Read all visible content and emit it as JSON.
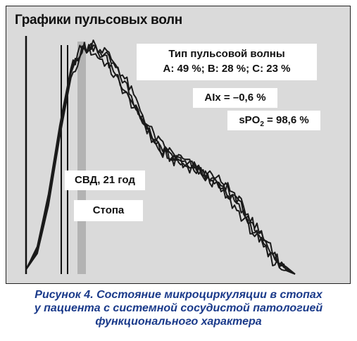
{
  "chart_data": {
    "type": "line",
    "title": "Графики пульсовых волн",
    "xlabel": "",
    "ylabel": "",
    "grid": false,
    "legend": "none",
    "series": [
      {
        "shape": [
          0.02,
          0.1,
          0.32,
          0.62,
          0.88,
          0.99,
          1.0,
          0.96,
          0.9,
          0.82,
          0.72,
          0.62,
          0.55,
          0.52,
          0.5,
          0.48,
          0.44,
          0.41,
          0.37,
          0.31,
          0.24,
          0.17,
          0.1,
          0.04,
          0.0
        ]
      },
      {
        "shape": [
          0.02,
          0.12,
          0.35,
          0.65,
          0.9,
          1.0,
          0.97,
          0.93,
          0.86,
          0.78,
          0.7,
          0.62,
          0.56,
          0.5,
          0.48,
          0.46,
          0.43,
          0.4,
          0.35,
          0.29,
          0.22,
          0.14,
          0.07,
          0.02,
          0.0
        ]
      },
      {
        "shape": [
          0.02,
          0.09,
          0.3,
          0.6,
          0.86,
          0.98,
          1.0,
          0.98,
          0.92,
          0.84,
          0.74,
          0.64,
          0.57,
          0.53,
          0.5,
          0.47,
          0.43,
          0.39,
          0.33,
          0.27,
          0.2,
          0.13,
          0.06,
          0.02,
          0.0
        ]
      },
      {
        "shape": [
          0.02,
          0.11,
          0.33,
          0.63,
          0.89,
          0.99,
          0.99,
          0.95,
          0.88,
          0.8,
          0.71,
          0.61,
          0.54,
          0.51,
          0.49,
          0.47,
          0.45,
          0.42,
          0.38,
          0.32,
          0.25,
          0.17,
          0.09,
          0.03,
          0.0
        ]
      }
    ],
    "colors": {
      "panel_bg": "#dadada",
      "line": "#1a1a1a",
      "marker_band": "#b3b3b3",
      "caption": "#1a3a8a"
    }
  },
  "annotations": {
    "wave_type_line1": "Тип пульсовой волны",
    "wave_type_line2": "A: 49 %; B: 28 %; C: 23 %",
    "aix": "AIx = –0,6 %",
    "spo2_prefix": "sPO",
    "spo2_sub": "2",
    "spo2_suffix": " = 98,6 %",
    "svd": "СВД, 21 год",
    "stopa": "Стопа"
  },
  "caption": {
    "line1": "Рисунок 4. Состояние микроциркуляции в стопах",
    "line2": "у пациента с системной сосудистой патологией",
    "line3": "функционального характера"
  }
}
